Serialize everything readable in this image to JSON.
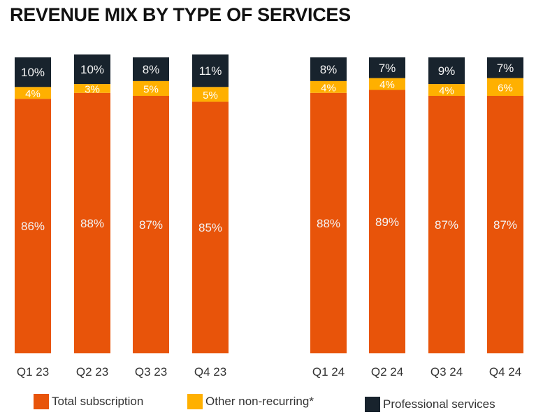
{
  "chart_data": {
    "type": "bar",
    "stacked": true,
    "title": "REVENUE MIX BY TYPE OF SERVICES",
    "categories": [
      "Q1 23",
      "Q2 23",
      "Q3 23",
      "Q4 23",
      "Q1 24",
      "Q2 24",
      "Q3 24",
      "Q4 24"
    ],
    "series": [
      {
        "name": "Total subscription",
        "color": "#e8540a",
        "values": [
          86,
          88,
          87,
          85,
          88,
          89,
          87,
          87
        ]
      },
      {
        "name": "Other non-recurring*",
        "color": "#ffb000",
        "values": [
          4,
          3,
          5,
          5,
          4,
          4,
          4,
          6
        ]
      },
      {
        "name": "Professional services",
        "color": "#18232d",
        "values": [
          10,
          10,
          8,
          11,
          8,
          7,
          9,
          7
        ]
      }
    ],
    "value_suffix": "%",
    "ylim": [
      0,
      100
    ],
    "grid": false,
    "legend_position": "bottom"
  }
}
